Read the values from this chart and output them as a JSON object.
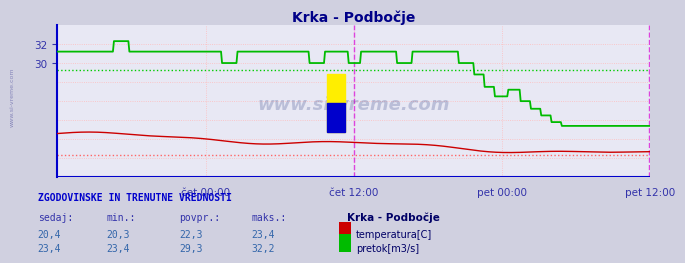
{
  "title_full": "Krka - Podbočje",
  "background_color": "#d0d0e0",
  "plot_bg_color": "#e8e8f4",
  "grid_color_pink": "#ffaaaa",
  "grid_color_green": "#aaffaa",
  "xlim": [
    0,
    576
  ],
  "ylim": [
    18,
    34
  ],
  "yticks": [
    30,
    32
  ],
  "xtick_labels": [
    "čet 00:00",
    "čet 12:00",
    "pet 00:00",
    "pet 12:00"
  ],
  "xtick_positions": [
    144,
    288,
    432,
    576
  ],
  "temp_min": 20.3,
  "temp_max": 23.4,
  "temp_avg": 22.3,
  "temp_current": 20.4,
  "flow_min": 23.4,
  "flow_max": 32.2,
  "flow_avg": 29.3,
  "flow_current": 23.4,
  "temp_color": "#cc0000",
  "flow_color": "#00bb00",
  "ref_line_temp_color": "#ff6666",
  "ref_line_flow_color": "#00cc00",
  "vline_color": "#ee44ee",
  "watermark": "www.si-vreme.com",
  "side_label": "www.si-vreme.com",
  "table_header": "ZGODOVINSKE IN TRENUTNE VREDNOSTI",
  "col_headers": [
    "sedaj:",
    "min.:",
    "povpr.:",
    "maks.:"
  ],
  "col_vals_temp": [
    "20,4",
    "20,3",
    "22,3",
    "23,4"
  ],
  "col_vals_flow": [
    "23,4",
    "23,4",
    "29,3",
    "32,2"
  ],
  "legend_title": "Krka - Podbočje",
  "temp_label": "temperatura[C]",
  "flow_label": "pretok[m3/s]",
  "tick_color": "#3333aa",
  "label_color": "#3333aa",
  "title_color": "#000088"
}
